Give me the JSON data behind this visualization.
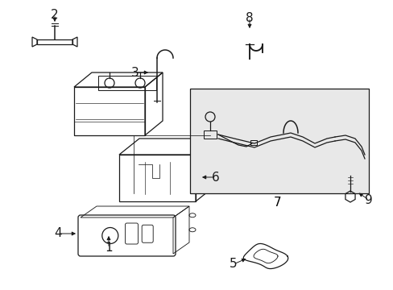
{
  "bg_color": "#ffffff",
  "line_color": "#1a1a1a",
  "label_color": "#000000",
  "fig_width": 4.89,
  "fig_height": 3.6,
  "dpi": 100,
  "font_size_label": 11
}
